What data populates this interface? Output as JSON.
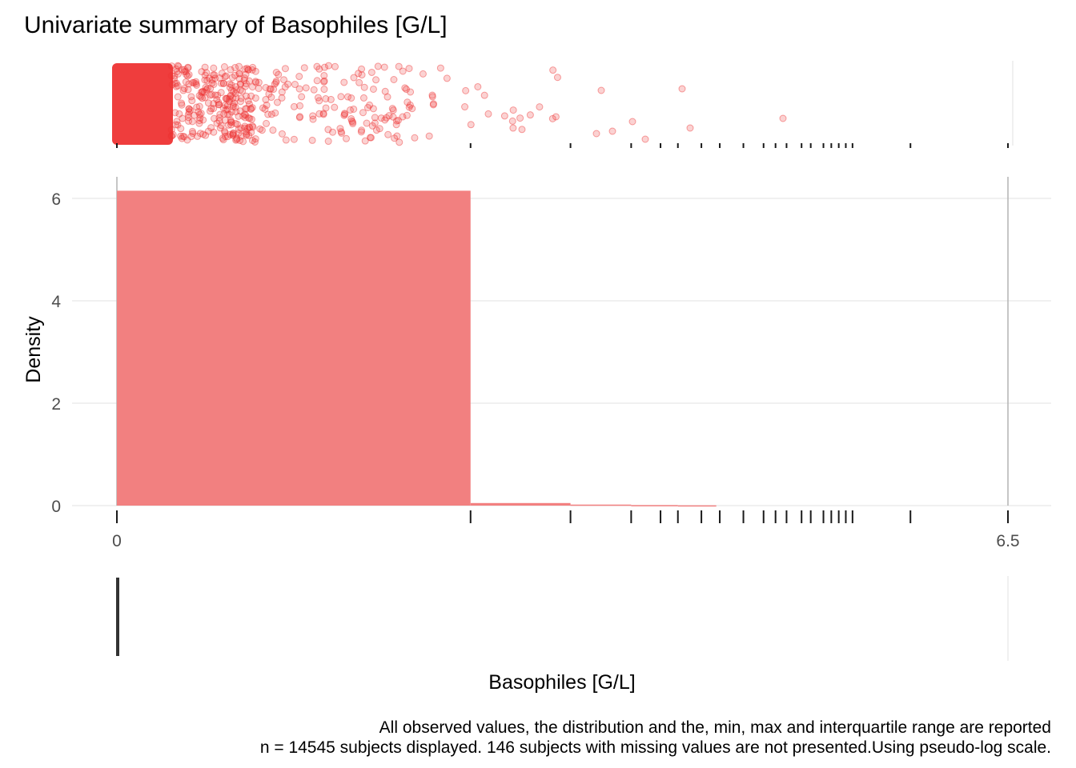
{
  "chart_data": {
    "type": "histogram",
    "title": "Univariate summary of Basophiles [G/L]",
    "xlabel": "Basophiles [G/L]",
    "ylabel": "Density",
    "x_scale": "pseudo-log",
    "xlim": [
      0,
      6.5
    ],
    "x_tick_labels": [
      "0",
      "6.5"
    ],
    "ylim": [
      0,
      6.3
    ],
    "y_ticks": [
      0,
      2,
      4,
      6
    ],
    "grid": true,
    "bar_color": "#F28080",
    "point_color": "#EE3333",
    "bins": [
      {
        "x0": 0.0,
        "x1": 0.13,
        "density": 6.15
      },
      {
        "x0": 0.13,
        "x1": 0.27,
        "density": 0.05
      },
      {
        "x0": 0.27,
        "x1": 0.42,
        "density": 0.02
      },
      {
        "x0": 0.42,
        "x1": 0.59,
        "density": 0.01
      },
      {
        "x0": 0.59,
        "x1": 0.78,
        "density": 0.005
      }
    ],
    "rug_values": [
      0.13,
      0.27,
      0.42,
      0.52,
      0.59,
      0.7,
      0.8,
      0.95,
      1.1,
      1.2,
      1.3,
      1.45,
      1.55,
      1.7,
      1.8,
      1.9,
      2.0,
      2.1,
      3.2,
      6.5
    ],
    "min": 0,
    "max": 6.5,
    "iqr": [
      0.01,
      0.03
    ],
    "caption_line1": "All observed values, the distribution and the, min, max and interquartile range are reported",
    "caption_line2": "n = 14545 subjects displayed. 146 subjects with missing values are not presented.Using pseudo-log scale."
  }
}
